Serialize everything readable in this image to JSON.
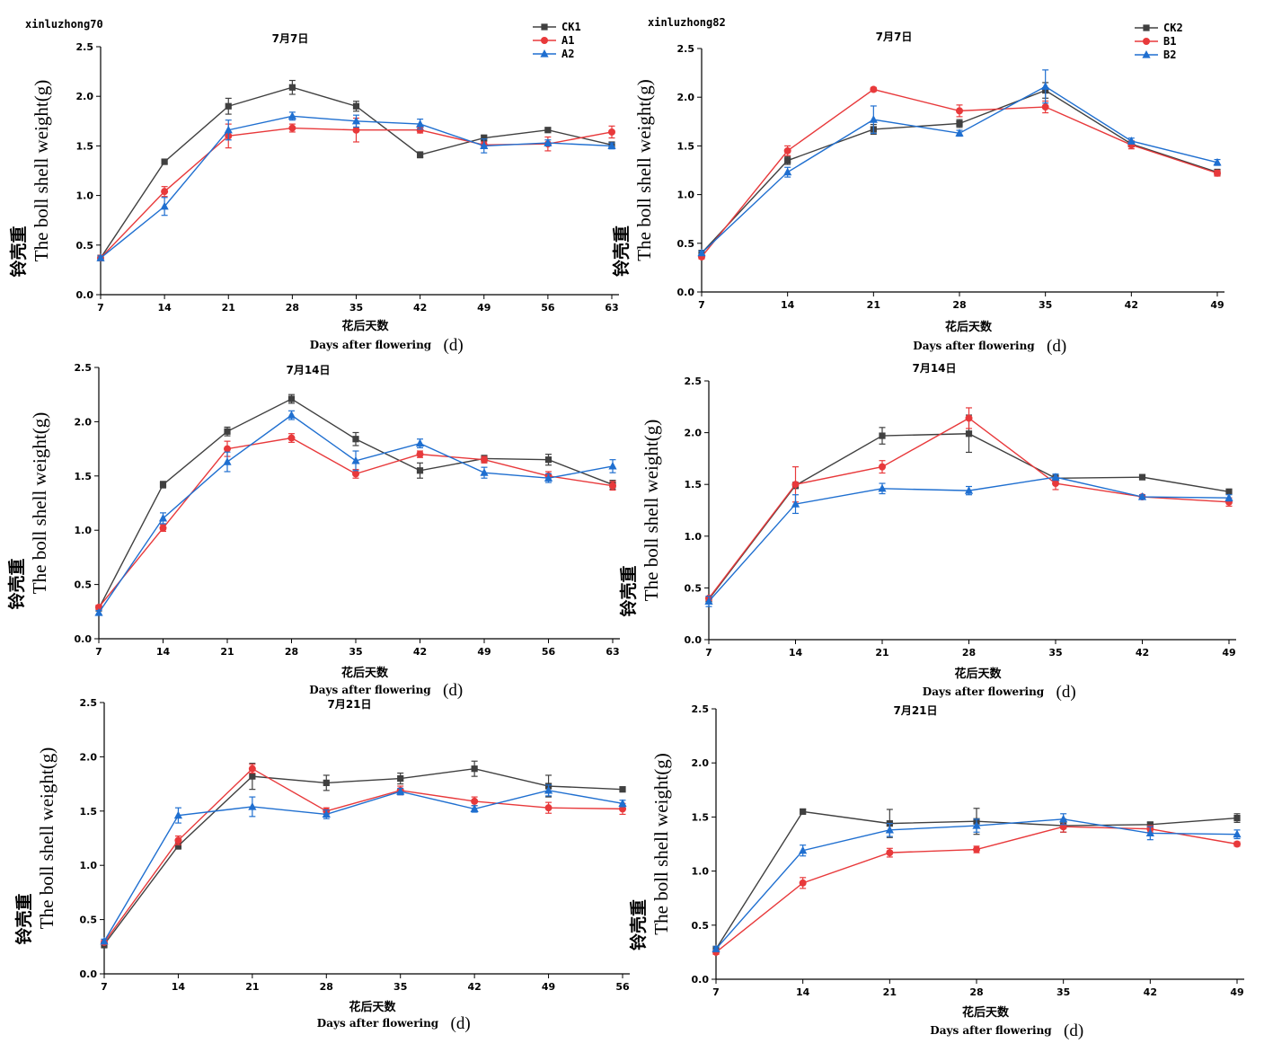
{
  "chart_data": [
    {
      "type": "line",
      "panel_label": "xinluzhong70",
      "title": "7月7日",
      "xlabel_cn": "花后天数",
      "xlabel_en": "Days after flowering",
      "xlabel_unit": "(d)",
      "ylabel_cn": "铃壳重",
      "ylabel_en": "The boll shell weight(g)",
      "x": [
        7,
        14,
        21,
        28,
        35,
        42,
        49,
        56,
        63
      ],
      "ylim": [
        0,
        2.5
      ],
      "yticks": [
        0.0,
        0.5,
        1.0,
        1.5,
        2.0,
        2.5
      ],
      "legend_position": "top-right",
      "series": [
        {
          "name": "CK1",
          "color": "#404040",
          "marker": "square",
          "values": [
            0.37,
            1.34,
            1.9,
            2.09,
            1.9,
            1.41,
            1.58,
            1.66,
            1.51
          ],
          "errors": [
            0.02,
            0.02,
            0.08,
            0.07,
            0.05,
            0.03,
            0.03,
            0.02,
            0.03
          ]
        },
        {
          "name": "A1",
          "color": "#e8393b",
          "marker": "circle",
          "values": [
            0.37,
            1.04,
            1.6,
            1.68,
            1.66,
            1.66,
            1.51,
            1.52,
            1.64
          ],
          "errors": [
            0.02,
            0.05,
            0.12,
            0.04,
            0.12,
            0.03,
            0.03,
            0.07,
            0.06
          ]
        },
        {
          "name": "A2",
          "color": "#1f6fd0",
          "marker": "triangle",
          "values": [
            0.37,
            0.89,
            1.66,
            1.8,
            1.75,
            1.72,
            1.5,
            1.53,
            1.5
          ],
          "errors": [
            0.02,
            0.09,
            0.1,
            0.04,
            0.06,
            0.05,
            0.07,
            0.03,
            0.03
          ]
        }
      ]
    },
    {
      "type": "line",
      "panel_label": "xinluzhong82",
      "title": "7月7日",
      "xlabel_cn": "花后天数",
      "xlabel_en": "Days after flowering",
      "xlabel_unit": "(d)",
      "ylabel_cn": "铃壳重",
      "ylabel_en": "The boll shell weight(g)",
      "x": [
        7,
        14,
        21,
        28,
        35,
        42,
        49
      ],
      "ylim": [
        0,
        2.5
      ],
      "yticks": [
        0.0,
        0.5,
        1.0,
        1.5,
        2.0,
        2.5
      ],
      "legend_position": "top-right",
      "series": [
        {
          "name": "CK2",
          "color": "#404040",
          "marker": "square",
          "values": [
            0.4,
            1.35,
            1.67,
            1.73,
            2.07,
            1.52,
            1.23
          ],
          "errors": [
            0.02,
            0.04,
            0.05,
            0.04,
            0.08,
            0.03,
            0.03
          ]
        },
        {
          "name": "B1",
          "color": "#e8393b",
          "marker": "circle",
          "values": [
            0.36,
            1.45,
            2.08,
            1.86,
            1.9,
            1.51,
            1.22
          ],
          "errors": [
            0.02,
            0.05,
            0.02,
            0.06,
            0.06,
            0.04,
            0.03
          ]
        },
        {
          "name": "B2",
          "color": "#1f6fd0",
          "marker": "triangle",
          "values": [
            0.4,
            1.23,
            1.77,
            1.63,
            2.11,
            1.55,
            1.33
          ],
          "errors": [
            0.02,
            0.05,
            0.14,
            0.03,
            0.17,
            0.03,
            0.03
          ]
        }
      ]
    },
    {
      "type": "line",
      "title": "7月14日",
      "xlabel_cn": "花后天数",
      "xlabel_en": "Days after flowering",
      "xlabel_unit": "(d)",
      "ylabel_cn": "铃壳重",
      "ylabel_en": "The boll shell weight(g)",
      "x": [
        7,
        14,
        21,
        28,
        35,
        42,
        49,
        56,
        63
      ],
      "ylim": [
        0,
        2.5
      ],
      "yticks": [
        0.0,
        0.5,
        1.0,
        1.5,
        2.0,
        2.5
      ],
      "series": [
        {
          "name": "CK1",
          "color": "#404040",
          "marker": "square",
          "values": [
            0.28,
            1.42,
            1.91,
            2.21,
            1.84,
            1.55,
            1.66,
            1.65,
            1.42
          ],
          "errors": [
            0.02,
            0.03,
            0.04,
            0.04,
            0.06,
            0.07,
            0.03,
            0.05,
            0.04
          ]
        },
        {
          "name": "A1",
          "color": "#e8393b",
          "marker": "circle",
          "values": [
            0.29,
            1.02,
            1.75,
            1.85,
            1.52,
            1.7,
            1.65,
            1.5,
            1.41
          ],
          "errors": [
            0.02,
            0.03,
            0.07,
            0.04,
            0.04,
            0.03,
            0.03,
            0.04,
            0.04
          ]
        },
        {
          "name": "A2",
          "color": "#1f6fd0",
          "marker": "triangle",
          "values": [
            0.24,
            1.11,
            1.63,
            2.06,
            1.64,
            1.8,
            1.53,
            1.48,
            1.59
          ],
          "errors": [
            0.02,
            0.05,
            0.09,
            0.04,
            0.09,
            0.04,
            0.05,
            0.04,
            0.06
          ]
        }
      ]
    },
    {
      "type": "line",
      "title": "7月14日",
      "xlabel_cn": "花后天数",
      "xlabel_en": "Days after flowering",
      "xlabel_unit": "(d)",
      "ylabel_cn": "铃壳重",
      "ylabel_en": "The boll shell weight(g)",
      "x": [
        7,
        14,
        21,
        28,
        35,
        42,
        49
      ],
      "ylim": [
        0,
        2.5
      ],
      "yticks": [
        0.0,
        0.5,
        1.0,
        1.5,
        2.0,
        2.5
      ],
      "series": [
        {
          "name": "CK2",
          "color": "#404040",
          "marker": "square",
          "values": [
            0.39,
            1.49,
            1.97,
            1.99,
            1.56,
            1.57,
            1.43
          ],
          "errors": [
            0.02,
            0.03,
            0.08,
            0.18,
            0.03,
            0.02,
            0.02
          ]
        },
        {
          "name": "B1",
          "color": "#e8393b",
          "marker": "circle",
          "values": [
            0.4,
            1.5,
            1.67,
            2.14,
            1.51,
            1.38,
            1.33
          ],
          "errors": [
            0.02,
            0.17,
            0.06,
            0.1,
            0.06,
            0.02,
            0.04
          ]
        },
        {
          "name": "B2",
          "color": "#1f6fd0",
          "marker": "triangle",
          "values": [
            0.37,
            1.31,
            1.46,
            1.44,
            1.57,
            1.38,
            1.37
          ],
          "errors": [
            0.05,
            0.09,
            0.05,
            0.04,
            0.03,
            0.02,
            0.03
          ]
        }
      ]
    },
    {
      "type": "line",
      "title": "7月21日",
      "xlabel_cn": "花后天数",
      "xlabel_en": "Days after flowering",
      "xlabel_unit": "(d)",
      "ylabel_cn": "铃壳重",
      "ylabel_en": "The boll shell weight(g)",
      "x": [
        7,
        14,
        21,
        28,
        35,
        42,
        49,
        56
      ],
      "ylim": [
        0,
        2.5
      ],
      "yticks": [
        0.0,
        0.5,
        1.0,
        1.5,
        2.0,
        2.5
      ],
      "series": [
        {
          "name": "CK1",
          "color": "#404040",
          "marker": "square",
          "values": [
            0.27,
            1.18,
            1.82,
            1.76,
            1.8,
            1.89,
            1.73,
            1.7
          ],
          "errors": [
            0.03,
            0.03,
            0.12,
            0.07,
            0.05,
            0.07,
            0.1,
            0.02
          ]
        },
        {
          "name": "A1",
          "color": "#e8393b",
          "marker": "circle",
          "values": [
            0.29,
            1.23,
            1.89,
            1.5,
            1.69,
            1.59,
            1.53,
            1.52
          ],
          "errors": [
            0.02,
            0.04,
            0.04,
            0.03,
            0.04,
            0.04,
            0.05,
            0.05
          ]
        },
        {
          "name": "A2",
          "color": "#1f6fd0",
          "marker": "triangle",
          "values": [
            0.3,
            1.46,
            1.54,
            1.47,
            1.68,
            1.52,
            1.69,
            1.57
          ],
          "errors": [
            0.02,
            0.07,
            0.09,
            0.04,
            0.03,
            0.03,
            0.05,
            0.03
          ]
        }
      ]
    },
    {
      "type": "line",
      "title": "7月21日",
      "xlabel_cn": "花后天数",
      "xlabel_en": "Days after flowering",
      "xlabel_unit": "(d)",
      "ylabel_cn": "铃壳重",
      "ylabel_en": "The boll shell weight(g)",
      "x": [
        7,
        14,
        21,
        28,
        35,
        42,
        49
      ],
      "ylim": [
        0,
        2.5
      ],
      "yticks": [
        0.0,
        0.5,
        1.0,
        1.5,
        2.0,
        2.5
      ],
      "series": [
        {
          "name": "CK2",
          "color": "#404040",
          "marker": "square",
          "values": [
            0.28,
            1.55,
            1.44,
            1.46,
            1.42,
            1.43,
            1.49
          ],
          "errors": [
            0.02,
            0.02,
            0.13,
            0.12,
            0.06,
            0.02,
            0.04
          ]
        },
        {
          "name": "B1",
          "color": "#e8393b",
          "marker": "circle",
          "values": [
            0.25,
            0.89,
            1.17,
            1.2,
            1.41,
            1.39,
            1.25
          ],
          "errors": [
            0.02,
            0.05,
            0.04,
            0.03,
            0.05,
            0.03,
            0.02
          ]
        },
        {
          "name": "B2",
          "color": "#1f6fd0",
          "marker": "triangle",
          "values": [
            0.28,
            1.19,
            1.38,
            1.42,
            1.48,
            1.35,
            1.34
          ],
          "errors": [
            0.02,
            0.05,
            0.06,
            0.06,
            0.05,
            0.06,
            0.04
          ]
        }
      ]
    }
  ]
}
